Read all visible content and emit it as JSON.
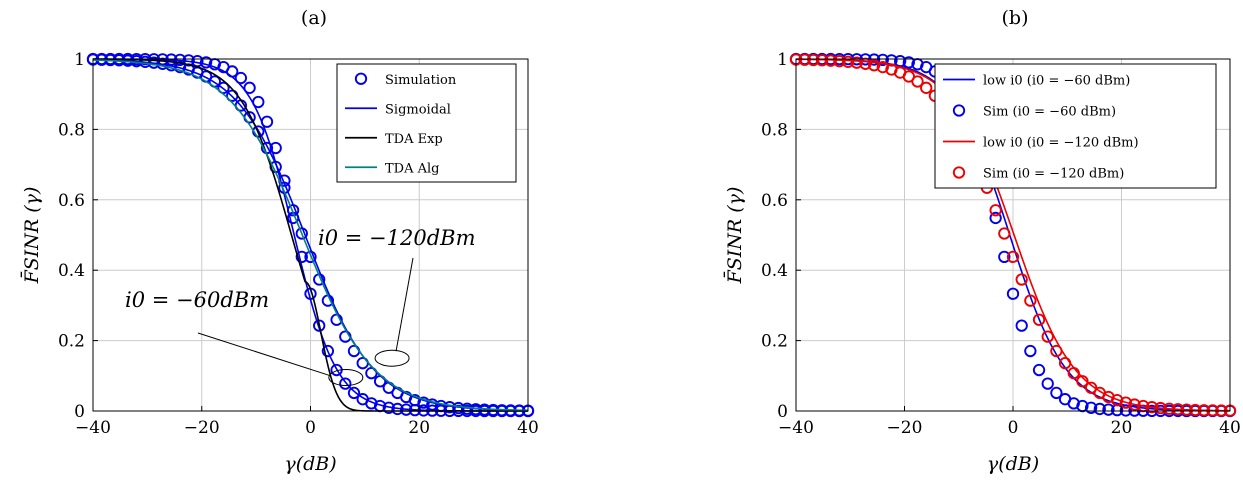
{
  "chart_data": [
    {
      "type": "line",
      "panel_label": "(a)",
      "xlabel": "γ(dB)",
      "ylabel": "F̄SINR (γ)",
      "xlim": [
        -40,
        40
      ],
      "ylim": [
        0,
        1
      ],
      "xticks": [
        -40,
        -20,
        0,
        20,
        40
      ],
      "yticks": [
        0,
        0.2,
        0.4,
        0.6,
        0.8,
        1
      ],
      "xtick_labels": [
        "−40",
        "−20",
        "0",
        "20",
        "40"
      ],
      "ytick_labels": [
        "0",
        "0.2",
        "0.4",
        "0.6",
        "0.8",
        "1"
      ],
      "grid": true,
      "legend_position": "top-right",
      "legend": [
        {
          "label": "Simulation",
          "style": "marker",
          "color": "#0000ee"
        },
        {
          "label": "Sigmoidal",
          "style": "line",
          "color": "#0000ee"
        },
        {
          "label": "TDA Exp",
          "style": "line",
          "color": "#000000"
        },
        {
          "label": "TDA Alg",
          "style": "line",
          "color": "#008080"
        }
      ],
      "annotations": [
        {
          "text": "i0 = −60dBm"
        },
        {
          "text": "i0 = −120dBm"
        }
      ],
      "series": [
        {
          "name": "Simulation",
          "curve": "sim60",
          "color": "#0000ee",
          "kind": "marker"
        },
        {
          "name": "Simulation",
          "curve": "sim120",
          "color": "#0000ee",
          "kind": "marker"
        },
        {
          "name": "Sigmoidal",
          "curve": "sig60",
          "color": "#0000ee",
          "kind": "line"
        },
        {
          "name": "Sigmoidal",
          "curve": "sig120",
          "color": "#0000ee",
          "kind": "line"
        },
        {
          "name": "TDA Exp",
          "curve": "exp",
          "color": "#000000",
          "kind": "line"
        },
        {
          "name": "TDA Alg",
          "curve": "alg",
          "color": "#008080",
          "kind": "line"
        }
      ]
    },
    {
      "type": "line",
      "panel_label": "(b)",
      "xlabel": "γ(dB)",
      "ylabel": "F̄SINR (γ)",
      "xlim": [
        -40,
        40
      ],
      "ylim": [
        0,
        1
      ],
      "xticks": [
        -40,
        -20,
        0,
        20,
        40
      ],
      "yticks": [
        0,
        0.2,
        0.4,
        0.6,
        0.8,
        1
      ],
      "xtick_labels": [
        "−40",
        "−20",
        "0",
        "20",
        "40"
      ],
      "ytick_labels": [
        "0",
        "0.2",
        "0.4",
        "0.6",
        "0.8",
        "1"
      ],
      "grid": true,
      "legend_position": "top-right",
      "legend": [
        {
          "label": "low i0 (i0 = −60 dBm)",
          "style": "line",
          "color": "#0000ee"
        },
        {
          "label": "Sim (i0 = −60 dBm)",
          "style": "marker",
          "color": "#0000ee"
        },
        {
          "label": "low i0 (i0 = −120 dBm)",
          "style": "line",
          "color": "#ee0000"
        },
        {
          "label": "Sim (i0 = −120 dBm)",
          "style": "marker",
          "color": "#ee0000"
        }
      ],
      "series": [
        {
          "name": "low i0 (i0 = −60 dBm)",
          "curve": "low60",
          "color": "#0000ee",
          "kind": "line"
        },
        {
          "name": "Sim (i0 = −60 dBm)",
          "curve": "sim60",
          "color": "#0000ee",
          "kind": "marker"
        },
        {
          "name": "low i0 (i0 = −120 dBm)",
          "curve": "low120",
          "color": "#ee0000",
          "kind": "line"
        },
        {
          "name": "Sim (i0 = −120 dBm)",
          "curve": "sim120",
          "color": "#ee0000",
          "kind": "marker"
        }
      ]
    }
  ]
}
